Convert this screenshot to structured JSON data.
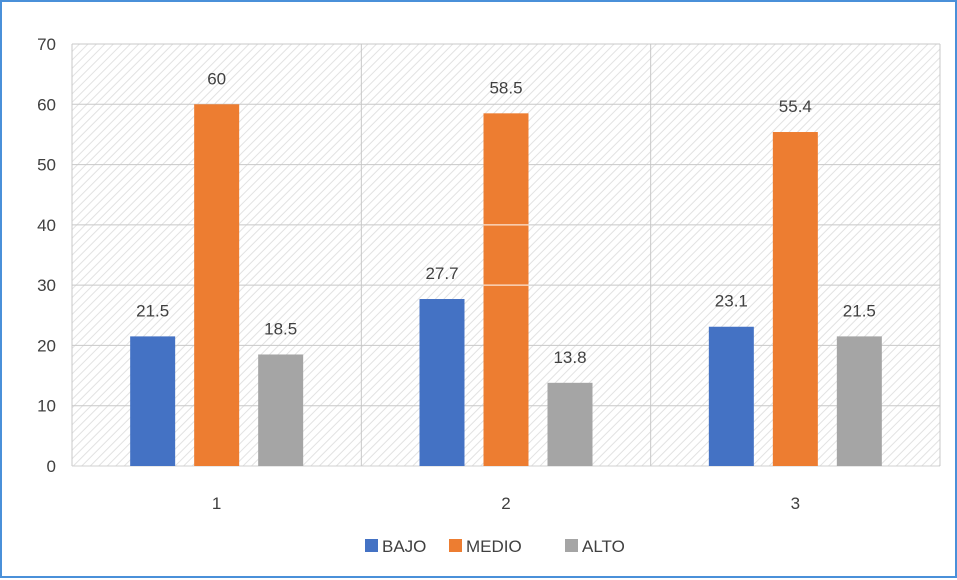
{
  "chart_data": {
    "type": "bar",
    "categories": [
      "1",
      "2",
      "3"
    ],
    "series": [
      {
        "name": "BAJO",
        "values": [
          21.5,
          27.7,
          23.1
        ],
        "color": "#4472C4"
      },
      {
        "name": "MEDIO",
        "values": [
          60,
          58.5,
          55.4
        ],
        "color": "#ED7D31"
      },
      {
        "name": "ALTO",
        "values": [
          18.5,
          13.8,
          21.5
        ],
        "color": "#A5A5A5"
      }
    ],
    "value_labels": [
      [
        "21.5",
        "27.7",
        "23.1"
      ],
      [
        "60",
        "58.5",
        "55.4"
      ],
      [
        "18.5",
        "13.8",
        "21.5"
      ]
    ],
    "ylim": [
      0,
      70
    ],
    "yticks": [
      "0",
      "10",
      "20",
      "30",
      "40",
      "50",
      "60",
      "70"
    ],
    "grid": true,
    "legend_position": "bottom",
    "title": "",
    "xlabel": "",
    "ylabel": ""
  }
}
